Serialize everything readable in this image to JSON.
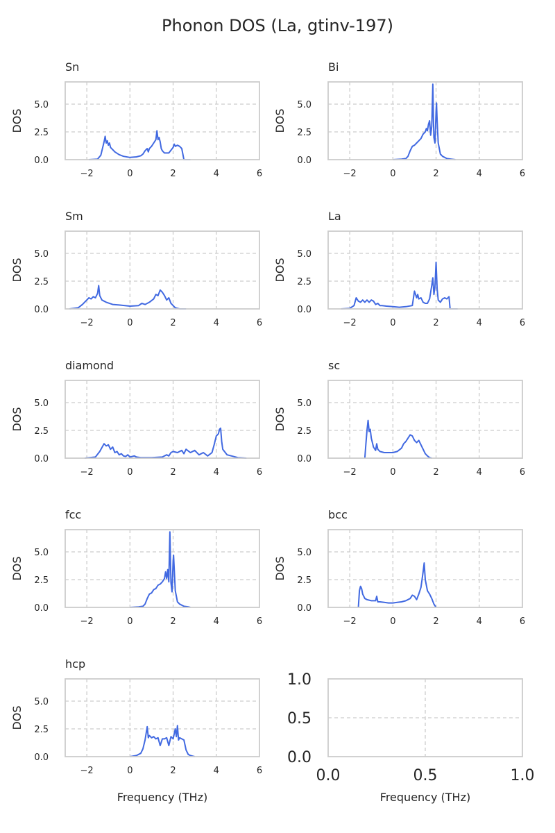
{
  "figure": {
    "title": "Phonon DOS (La, gtinv-197)"
  },
  "colors": {
    "line": "#4169e1",
    "grid": "#cccccc",
    "spine": "#cccccc",
    "text": "#262626",
    "background": "#ffffff"
  },
  "chart_data": [
    {
      "type": "line",
      "title": "Sn",
      "xlabel": "",
      "ylabel": "DOS",
      "xlim": [
        -3,
        6
      ],
      "ylim": [
        0,
        7
      ],
      "xticks": [
        "−2",
        "0",
        "2",
        "4",
        "6"
      ],
      "yticks": [
        "0.0",
        "2.5",
        "5.0"
      ],
      "grid": true,
      "series": [
        {
          "x": [
            -1.9,
            -1.5,
            -1.35,
            -1.25,
            -1.2,
            -1.15,
            -1.1,
            -1.05,
            -1.0,
            -0.95,
            -0.9,
            -0.8,
            -0.7,
            -0.5,
            -0.3,
            0.0,
            0.3,
            0.5,
            0.6,
            0.7,
            0.8,
            0.85,
            0.9,
            1.0,
            1.1,
            1.2,
            1.25,
            1.3,
            1.35,
            1.4,
            1.45,
            1.5,
            1.6,
            1.8,
            2.0,
            2.05,
            2.1,
            2.2,
            2.3,
            2.4,
            2.5,
            2.6,
            2.8
          ],
          "y": [
            0.0,
            0.05,
            0.4,
            1.2,
            1.6,
            2.1,
            1.5,
            1.7,
            1.3,
            1.5,
            1.1,
            0.9,
            0.7,
            0.45,
            0.3,
            0.2,
            0.25,
            0.35,
            0.5,
            0.8,
            1.0,
            0.7,
            1.0,
            1.2,
            1.5,
            1.8,
            2.6,
            1.8,
            2.0,
            1.6,
            1.0,
            0.8,
            0.6,
            0.6,
            1.1,
            1.4,
            1.2,
            1.3,
            1.2,
            1.0,
            0.0,
            0.0,
            0.0
          ]
        }
      ]
    },
    {
      "type": "line",
      "title": "Bi",
      "xlabel": "",
      "ylabel": "DOS",
      "xlim": [
        -3,
        6
      ],
      "ylim": [
        0,
        7
      ],
      "xticks": [
        "−2",
        "0",
        "2",
        "4",
        "6"
      ],
      "yticks": [
        "0.0",
        "2.5",
        "5.0"
      ],
      "grid": true,
      "series": [
        {
          "x": [
            0.0,
            0.4,
            0.6,
            0.7,
            0.8,
            0.9,
            1.0,
            1.1,
            1.2,
            1.3,
            1.4,
            1.5,
            1.55,
            1.6,
            1.65,
            1.7,
            1.75,
            1.8,
            1.85,
            1.88,
            1.9,
            1.95,
            2.0,
            2.02,
            2.05,
            2.1,
            2.2,
            2.3,
            2.5,
            2.7,
            2.9
          ],
          "y": [
            0.0,
            0.05,
            0.1,
            0.3,
            0.8,
            1.2,
            1.3,
            1.5,
            1.7,
            1.9,
            2.3,
            2.5,
            2.8,
            2.6,
            3.2,
            3.5,
            2.2,
            3.0,
            6.8,
            3.5,
            2.0,
            1.5,
            4.3,
            5.1,
            3.5,
            1.5,
            0.5,
            0.3,
            0.1,
            0.05,
            0.0
          ]
        }
      ]
    },
    {
      "type": "line",
      "title": "Sm",
      "xlabel": "",
      "ylabel": "DOS",
      "xlim": [
        -3,
        6
      ],
      "ylim": [
        0,
        7
      ],
      "xticks": [
        "−2",
        "0",
        "2",
        "4",
        "6"
      ],
      "yticks": [
        "0.0",
        "2.5",
        "5.0"
      ],
      "grid": true,
      "series": [
        {
          "x": [
            -2.8,
            -2.4,
            -2.2,
            -2.0,
            -1.9,
            -1.8,
            -1.7,
            -1.6,
            -1.5,
            -1.45,
            -1.4,
            -1.3,
            -1.1,
            -0.8,
            -0.5,
            0.0,
            0.4,
            0.55,
            0.7,
            0.9,
            1.1,
            1.2,
            1.3,
            1.4,
            1.5,
            1.6,
            1.7,
            1.8,
            1.9,
            2.0,
            2.1,
            2.3,
            2.6
          ],
          "y": [
            0.0,
            0.1,
            0.4,
            0.8,
            1.0,
            0.9,
            1.1,
            1.0,
            1.4,
            2.1,
            1.2,
            0.8,
            0.6,
            0.4,
            0.35,
            0.25,
            0.3,
            0.5,
            0.4,
            0.6,
            0.9,
            1.3,
            1.2,
            1.7,
            1.5,
            1.2,
            0.8,
            1.0,
            0.5,
            0.3,
            0.1,
            0.0,
            0.0
          ]
        }
      ]
    },
    {
      "type": "line",
      "title": "La",
      "xlabel": "",
      "ylabel": "DOS",
      "xlim": [
        -3,
        6
      ],
      "ylim": [
        0,
        7
      ],
      "xticks": [
        "−2",
        "0",
        "2",
        "4",
        "6"
      ],
      "yticks": [
        "0.0",
        "2.5",
        "5.0"
      ],
      "grid": true,
      "series": [
        {
          "x": [
            -2.4,
            -2.0,
            -1.8,
            -1.7,
            -1.6,
            -1.5,
            -1.4,
            -1.3,
            -1.2,
            -1.1,
            -1.0,
            -0.9,
            -0.8,
            -0.7,
            -0.6,
            -0.5,
            -0.3,
            0.0,
            0.3,
            0.6,
            0.9,
            1.0,
            1.05,
            1.1,
            1.15,
            1.2,
            1.3,
            1.4,
            1.5,
            1.6,
            1.7,
            1.8,
            1.85,
            1.9,
            1.95,
            2.0,
            2.05,
            2.1,
            2.2,
            2.3,
            2.4,
            2.5,
            2.6,
            2.65,
            2.7,
            3.0
          ],
          "y": [
            0.0,
            0.05,
            0.3,
            1.0,
            0.7,
            0.6,
            0.8,
            0.6,
            0.8,
            0.6,
            0.8,
            0.7,
            0.4,
            0.5,
            0.3,
            0.3,
            0.25,
            0.2,
            0.15,
            0.2,
            0.3,
            1.6,
            1.3,
            1.0,
            1.3,
            0.9,
            1.0,
            0.6,
            0.5,
            0.5,
            0.9,
            2.1,
            2.8,
            1.3,
            2.0,
            4.2,
            1.8,
            0.8,
            0.6,
            0.9,
            1.0,
            0.9,
            1.1,
            0.0,
            0.0,
            0.0
          ]
        }
      ]
    },
    {
      "type": "line",
      "title": "diamond",
      "xlabel": "",
      "ylabel": "DOS",
      "xlim": [
        -3,
        6
      ],
      "ylim": [
        0,
        7
      ],
      "xticks": [
        "−2",
        "0",
        "2",
        "4",
        "6"
      ],
      "yticks": [
        "0.0",
        "2.5",
        "5.0"
      ],
      "grid": true,
      "series": [
        {
          "x": [
            -2.1,
            -1.6,
            -1.4,
            -1.2,
            -1.1,
            -1.0,
            -0.9,
            -0.8,
            -0.7,
            -0.6,
            -0.5,
            -0.4,
            -0.3,
            -0.2,
            -0.1,
            0.0,
            0.2,
            0.3,
            0.5,
            1.0,
            1.5,
            1.7,
            1.8,
            1.9,
            2.0,
            2.2,
            2.4,
            2.5,
            2.6,
            2.8,
            3.0,
            3.2,
            3.4,
            3.6,
            3.8,
            3.9,
            4.0,
            4.1,
            4.15,
            4.2,
            4.25,
            4.3,
            4.5,
            5.0,
            5.4
          ],
          "y": [
            0.0,
            0.1,
            0.6,
            1.3,
            1.1,
            1.2,
            0.8,
            1.0,
            0.5,
            0.6,
            0.3,
            0.4,
            0.2,
            0.15,
            0.3,
            0.1,
            0.2,
            0.1,
            0.05,
            0.05,
            0.1,
            0.3,
            0.2,
            0.5,
            0.6,
            0.5,
            0.7,
            0.4,
            0.8,
            0.5,
            0.7,
            0.3,
            0.5,
            0.2,
            0.5,
            1.2,
            2.0,
            2.2,
            2.6,
            2.7,
            1.5,
            0.8,
            0.3,
            0.05,
            0.0
          ]
        }
      ]
    },
    {
      "type": "line",
      "title": "sc",
      "xlabel": "",
      "ylabel": "DOS",
      "xlim": [
        -3,
        6
      ],
      "ylim": [
        0,
        7
      ],
      "xticks": [
        "−2",
        "0",
        "2",
        "4",
        "6"
      ],
      "yticks": [
        "0.0",
        "2.5",
        "5.0"
      ],
      "grid": true,
      "series": [
        {
          "x": [
            -1.3,
            -1.25,
            -1.2,
            -1.15,
            -1.1,
            -1.05,
            -1.0,
            -0.9,
            -0.8,
            -0.75,
            -0.7,
            -0.6,
            -0.4,
            -0.2,
            0.0,
            0.2,
            0.4,
            0.5,
            0.6,
            0.7,
            0.8,
            0.9,
            1.0,
            1.1,
            1.2,
            1.3,
            1.4,
            1.5,
            1.6,
            1.7,
            1.8
          ],
          "y": [
            0.0,
            1.3,
            2.5,
            3.4,
            2.4,
            2.6,
            1.8,
            1.0,
            0.7,
            1.3,
            0.8,
            0.6,
            0.5,
            0.5,
            0.5,
            0.6,
            0.9,
            1.3,
            1.5,
            1.8,
            2.1,
            2.0,
            1.6,
            1.4,
            1.6,
            1.2,
            0.8,
            0.4,
            0.2,
            0.05,
            0.0
          ]
        }
      ]
    },
    {
      "type": "line",
      "title": "fcc",
      "xlabel": "",
      "ylabel": "DOS",
      "xlim": [
        -3,
        6
      ],
      "ylim": [
        0,
        7
      ],
      "xticks": [
        "−2",
        "0",
        "2",
        "4",
        "6"
      ],
      "yticks": [
        "0.0",
        "2.5",
        "5.0"
      ],
      "grid": true,
      "series": [
        {
          "x": [
            0.0,
            0.4,
            0.6,
            0.7,
            0.8,
            0.9,
            1.0,
            1.1,
            1.2,
            1.3,
            1.4,
            1.5,
            1.6,
            1.65,
            1.7,
            1.75,
            1.8,
            1.85,
            1.88,
            1.9,
            1.95,
            2.0,
            2.02,
            2.05,
            2.1,
            2.2,
            2.3,
            2.5,
            2.7,
            2.8
          ],
          "y": [
            0.0,
            0.05,
            0.1,
            0.3,
            0.8,
            1.2,
            1.3,
            1.6,
            1.7,
            2.0,
            2.1,
            2.3,
            2.6,
            3.2,
            2.6,
            3.4,
            2.3,
            6.8,
            4.0,
            2.2,
            1.4,
            4.2,
            4.7,
            3.5,
            1.5,
            0.5,
            0.3,
            0.1,
            0.05,
            0.0
          ]
        }
      ]
    },
    {
      "type": "line",
      "title": "bcc",
      "xlabel": "",
      "ylabel": "DOS",
      "xlim": [
        -3,
        6
      ],
      "ylim": [
        0,
        7
      ],
      "xticks": [
        "−2",
        "0",
        "2",
        "4",
        "6"
      ],
      "yticks": [
        "0.0",
        "2.5",
        "5.0"
      ],
      "grid": true,
      "series": [
        {
          "x": [
            -1.6,
            -1.55,
            -1.5,
            -1.45,
            -1.4,
            -1.3,
            -1.2,
            -1.0,
            -0.8,
            -0.75,
            -0.7,
            -0.6,
            -0.4,
            -0.2,
            0.0,
            0.2,
            0.4,
            0.6,
            0.8,
            0.9,
            1.0,
            1.1,
            1.2,
            1.3,
            1.4,
            1.45,
            1.5,
            1.6,
            1.7,
            1.8,
            1.9,
            2.0
          ],
          "y": [
            0.0,
            1.5,
            1.9,
            1.7,
            1.2,
            0.8,
            0.7,
            0.6,
            0.6,
            1.0,
            0.5,
            0.5,
            0.45,
            0.4,
            0.4,
            0.45,
            0.5,
            0.6,
            0.8,
            1.1,
            1.0,
            0.7,
            1.2,
            1.8,
            3.2,
            4.0,
            2.5,
            1.5,
            1.2,
            0.8,
            0.3,
            0.0
          ]
        }
      ]
    },
    {
      "type": "line",
      "title": "hcp",
      "xlabel": "Frequency (THz)",
      "ylabel": "DOS",
      "xlim": [
        -3,
        6
      ],
      "ylim": [
        0,
        7
      ],
      "xticks": [
        "−2",
        "0",
        "2",
        "4",
        "6"
      ],
      "yticks": [
        "0.0",
        "2.5",
        "5.0"
      ],
      "grid": true,
      "series": [
        {
          "x": [
            0.0,
            0.3,
            0.5,
            0.6,
            0.7,
            0.8,
            0.85,
            0.9,
            1.0,
            1.1,
            1.2,
            1.3,
            1.4,
            1.5,
            1.6,
            1.7,
            1.8,
            1.9,
            2.0,
            2.1,
            2.15,
            2.2,
            2.25,
            2.3,
            2.4,
            2.5,
            2.6,
            2.7,
            2.8,
            2.9,
            3.0
          ],
          "y": [
            0.0,
            0.1,
            0.3,
            0.7,
            1.5,
            2.7,
            1.7,
            1.9,
            1.7,
            1.8,
            1.6,
            1.7,
            1.0,
            1.6,
            1.6,
            1.7,
            1.0,
            1.8,
            1.6,
            2.5,
            1.8,
            2.8,
            1.5,
            1.7,
            1.6,
            1.5,
            0.6,
            0.2,
            0.1,
            0.05,
            0.0
          ]
        }
      ]
    },
    {
      "type": "line",
      "title": "",
      "xlabel": "Frequency (THz)",
      "ylabel": "",
      "xlim": [
        0,
        1
      ],
      "ylim": [
        0,
        1
      ],
      "xticks": [
        "0.0",
        "0.5",
        "1.0"
      ],
      "yticks": [
        "0.0",
        "0.5",
        "1.0"
      ],
      "grid": true,
      "series": []
    }
  ]
}
